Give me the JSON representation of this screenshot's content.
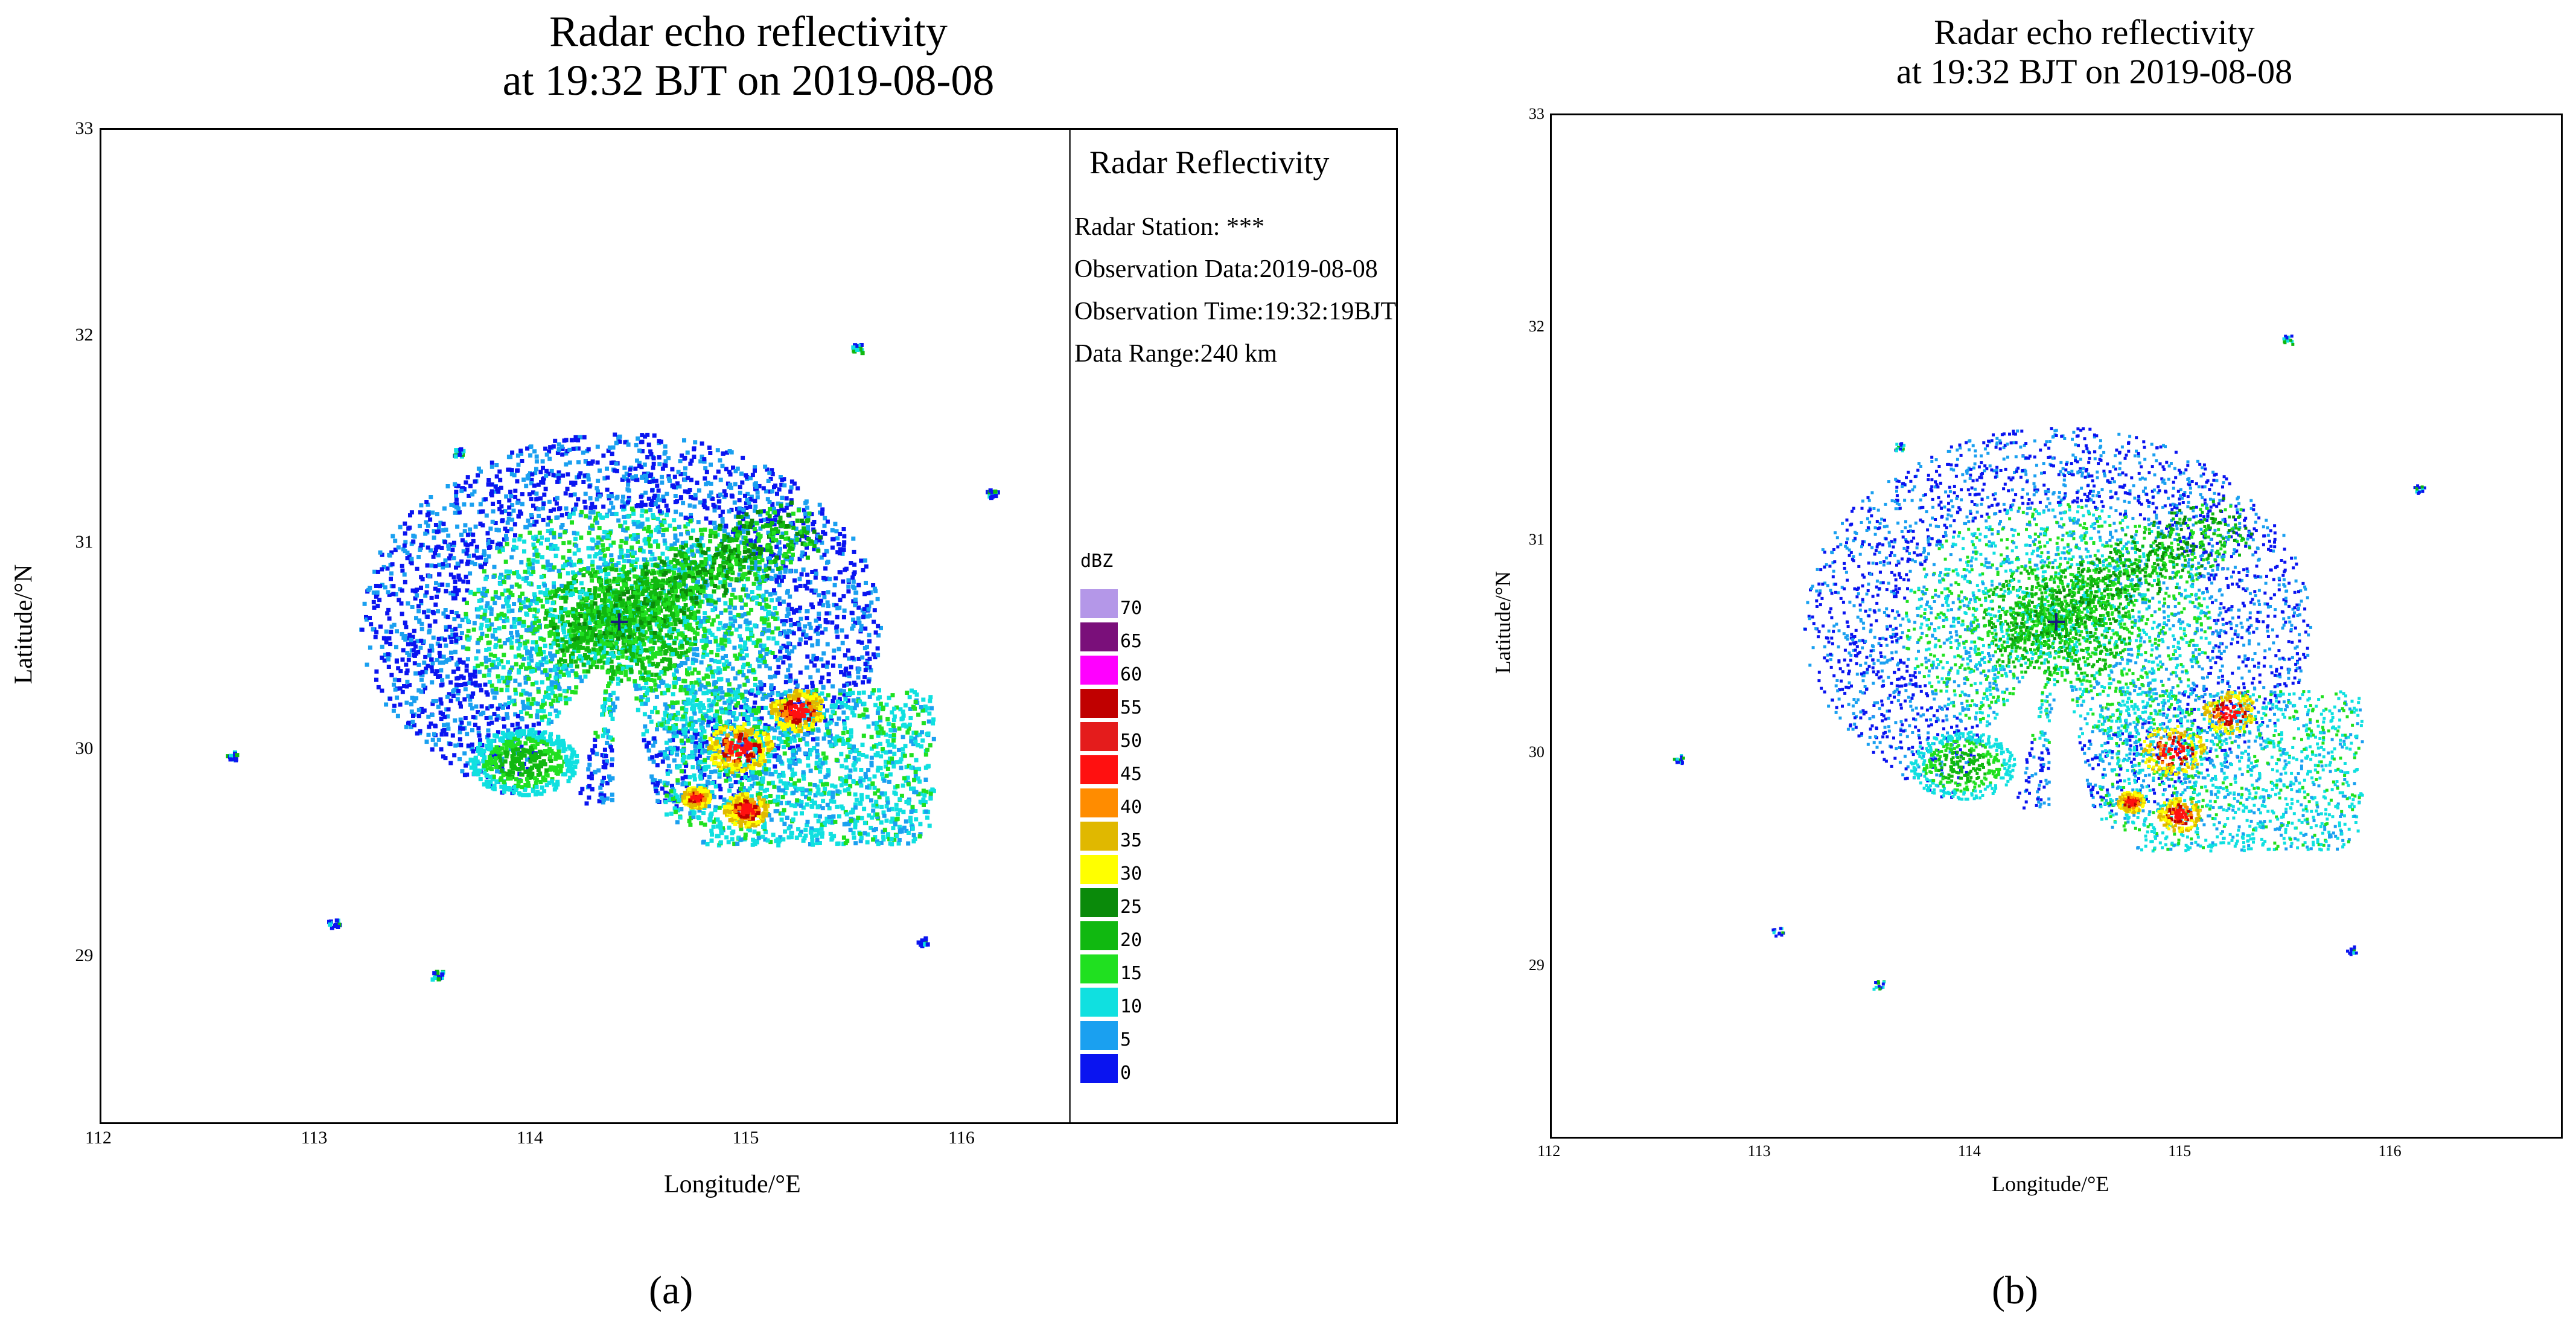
{
  "chart_data": [
    {
      "type": "heatmap",
      "panel": "(a)",
      "title_line1": "Radar echo reflectivity",
      "title_line2": "at 19:32 BJT on 2019-08-08",
      "xlabel": "Longitude/°E",
      "ylabel": "Latitude/°N",
      "xlim": [
        112,
        118
      ],
      "ylim": [
        28.2,
        33
      ],
      "xticks": [
        "112",
        "113",
        "114",
        "115",
        "116"
      ],
      "yticks": [
        "33",
        "32",
        "31",
        "30",
        "29"
      ],
      "info": {
        "heading": "Radar Reflectivity",
        "station": "Radar Station: ***",
        "date": "Observation Data:2019-08-08",
        "time": "Observation Time:19:32:19BJT",
        "range": "Data Range:240 km"
      },
      "colorbar": {
        "unit": "dBZ",
        "levels": [
          "70",
          "65",
          "60",
          "55",
          "50",
          "45",
          "40",
          "35",
          "30",
          "25",
          "20",
          "15",
          "10",
          "5",
          "0"
        ],
        "colors": [
          "#b497e8",
          "#7a0f7a",
          "#ff00ff",
          "#c00000",
          "#e41c1c",
          "#ff1010",
          "#ff8c00",
          "#e0b800",
          "#ffff00",
          "#0a8a0a",
          "#10b810",
          "#20e020",
          "#10e0e0",
          "#1aa0f0",
          "#0a14f0"
        ]
      },
      "radar_center": [
        114.4,
        30.62
      ],
      "range_km": 240
    },
    {
      "type": "heatmap",
      "panel": "(b)",
      "title_line1": "Radar echo reflectivity",
      "title_line2": "at 19:32 BJT on 2019-08-08",
      "xlabel": "Longitude/°E",
      "ylabel": "Latitude/°N",
      "xlim": [
        112,
        116.8
      ],
      "ylim": [
        28.2,
        33
      ],
      "xticks": [
        "112",
        "113",
        "114",
        "115",
        "116"
      ],
      "yticks": [
        "33",
        "32",
        "31",
        "30",
        "29"
      ],
      "radar_center": [
        114.4,
        30.62
      ],
      "range_km": 240
    }
  ]
}
